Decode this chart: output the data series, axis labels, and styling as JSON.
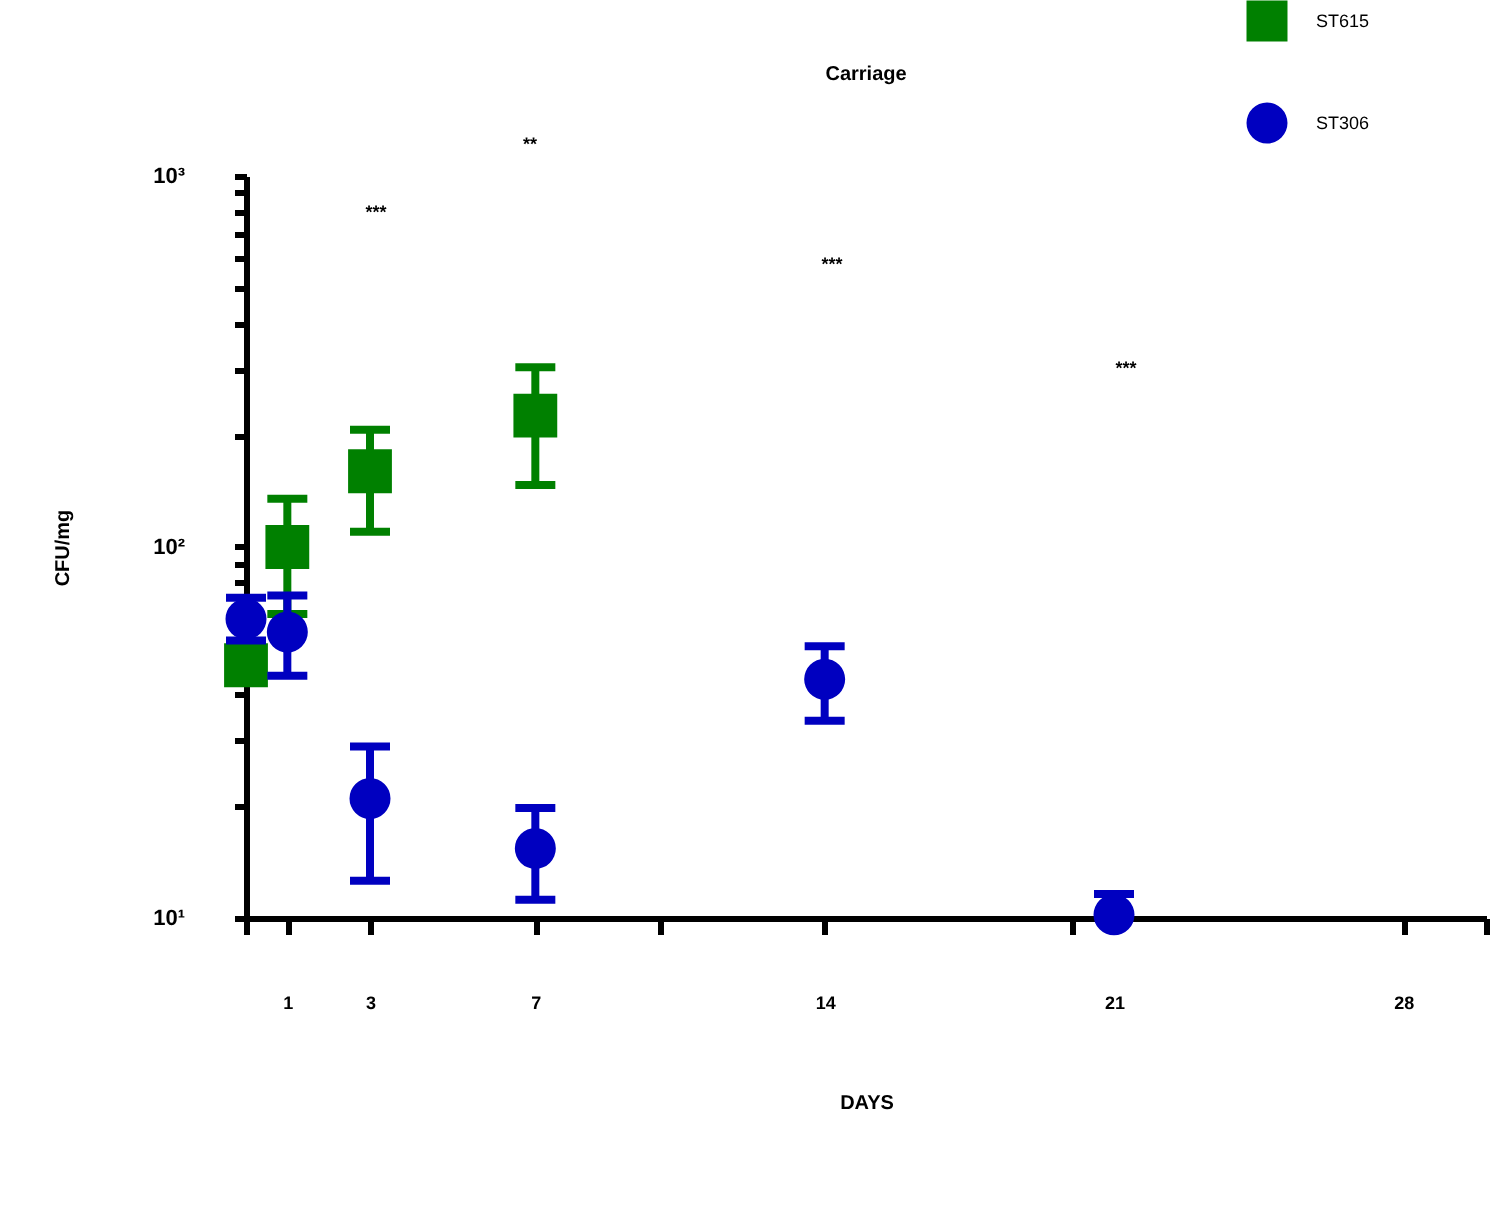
{
  "chart_data": {
    "type": "scatter",
    "title": "Carriage",
    "xlabel": "DAYS",
    "ylabel": "CFU/mg",
    "log": "y",
    "legend": "top right",
    "grid": false,
    "xlim": [
      0,
      30
    ],
    "xticks": [
      {
        "value": 0,
        "label": null
      },
      1,
      3,
      7,
      {
        "value": 10,
        "label": null
      },
      14,
      {
        "value": 20,
        "label": null
      },
      21,
      28,
      {
        "value": 30,
        "label": null
      }
    ],
    "ylim": [
      10,
      1000
    ],
    "yticks": [
      {
        "value": 10,
        "label": "10¹"
      },
      {
        "value": 20,
        "label": null
      },
      {
        "value": 30,
        "label": null
      },
      {
        "value": 40,
        "label": null
      },
      {
        "value": 50,
        "label": null
      },
      {
        "value": 60,
        "label": null
      },
      {
        "value": 70,
        "label": null
      },
      {
        "value": 80,
        "label": null
      },
      {
        "value": 90,
        "label": null
      },
      {
        "value": 100,
        "label": "10²"
      },
      {
        "value": 200,
        "label": null
      },
      {
        "value": 300,
        "label": null
      },
      {
        "value": 400,
        "label": null
      },
      {
        "value": 500,
        "label": null
      },
      {
        "value": 600,
        "label": null
      },
      {
        "value": 700,
        "label": null
      },
      {
        "value": 800,
        "label": null
      },
      {
        "value": 900,
        "label": null
      },
      {
        "value": 1000,
        "label": "10³"
      }
    ],
    "series": [
      {
        "name": "ST615",
        "color": "#008000",
        "marker": "square",
        "x": [
          0,
          1,
          3,
          7
        ],
        "values": [
          48,
          100,
          160,
          226
        ],
        "errors": [
          null,
          [
            66,
            135
          ],
          [
            110,
            207
          ],
          [
            147,
            305
          ]
        ]
      },
      {
        "name": "ST306",
        "color": "#0000c0",
        "marker": "circle",
        "x": [
          0,
          1,
          3,
          7,
          14,
          21
        ],
        "values": [
          64,
          59,
          21,
          15.4,
          44,
          10.2
        ],
        "errors": [
          [
            56,
            73
          ],
          [
            45,
            74
          ],
          [
            12.6,
            29
          ],
          [
            11.2,
            19.8
          ],
          [
            34,
            54
          ],
          [
            10.2,
            11.6
          ]
        ]
      }
    ],
    "annotations": [
      "***",
      "**",
      "***",
      "***"
    ]
  }
}
